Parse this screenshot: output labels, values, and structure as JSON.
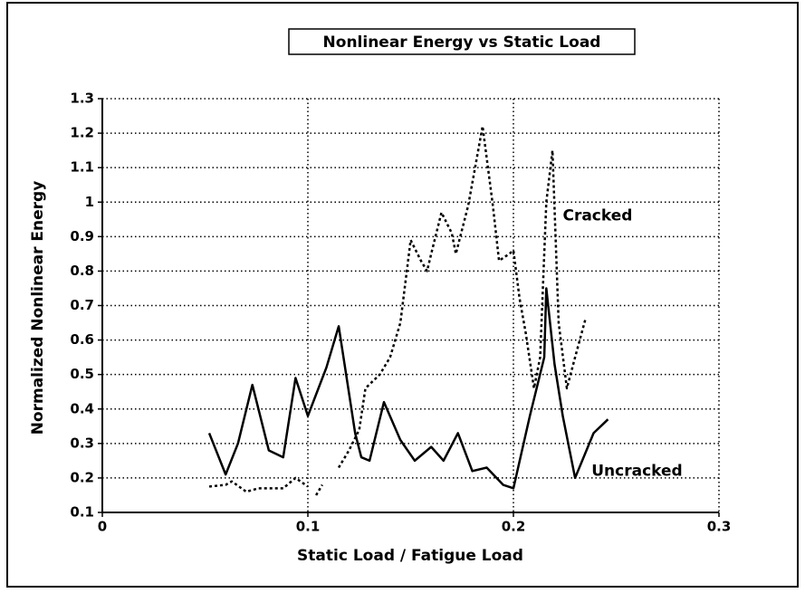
{
  "chart_data": {
    "type": "line",
    "title": "Nonlinear Energy vs Static Load",
    "x_label": "Static Load / Fatigue Load",
    "y_label": "Normalized Nonlinear Energy",
    "xlim": [
      0,
      0.3
    ],
    "ylim": [
      0.1,
      1.3
    ],
    "xticks": [
      0,
      0.1,
      0.2,
      0.3
    ],
    "yticks": [
      0.1,
      0.2,
      0.3,
      0.4,
      0.5,
      0.6,
      0.7,
      0.8,
      0.9,
      1,
      1.1,
      1.2,
      1.3
    ],
    "grid": true,
    "series": [
      {
        "name": "Uncracked",
        "color": "#000000",
        "style": "solid",
        "x": [
          0.052,
          0.06,
          0.066,
          0.073,
          0.081,
          0.088,
          0.094,
          0.1,
          0.109,
          0.115,
          0.123,
          0.126,
          0.13,
          0.137,
          0.145,
          0.152,
          0.16,
          0.166,
          0.173,
          0.18,
          0.187,
          0.195,
          0.2,
          0.208,
          0.215,
          0.216,
          0.22,
          0.224,
          0.23,
          0.239,
          0.246
        ],
        "values": [
          0.33,
          0.21,
          0.3,
          0.47,
          0.28,
          0.26,
          0.49,
          0.38,
          0.52,
          0.64,
          0.33,
          0.26,
          0.25,
          0.42,
          0.31,
          0.25,
          0.29,
          0.25,
          0.33,
          0.22,
          0.23,
          0.18,
          0.17,
          0.38,
          0.55,
          0.75,
          0.53,
          0.38,
          0.2,
          0.33,
          0.37
        ]
      },
      {
        "name": "Cracked",
        "color": "#000000",
        "style": "dotted",
        "x": [
          0.052,
          0.06,
          0.063,
          0.07,
          0.076,
          0.088,
          0.094,
          0.1,
          0.102,
          0.104,
          0.107,
          0.111,
          0.115,
          0.12,
          0.125,
          0.128,
          0.135,
          0.14,
          0.145,
          0.15,
          0.155,
          0.158,
          0.16,
          0.165,
          0.17,
          0.172,
          0.178,
          0.185,
          0.19,
          0.193,
          0.198,
          0.2,
          0.203,
          0.206,
          0.21,
          0.213,
          0.216,
          0.219,
          0.222,
          0.226,
          0.23,
          0.235
        ],
        "values": [
          0.175,
          0.18,
          0.19,
          0.16,
          0.17,
          0.17,
          0.2,
          0.175,
          null,
          0.15,
          0.18,
          null,
          0.23,
          0.28,
          0.34,
          0.46,
          0.5,
          0.55,
          0.65,
          0.89,
          0.83,
          0.8,
          0.85,
          0.97,
          0.91,
          0.85,
          0.99,
          1.22,
          0.99,
          0.83,
          0.85,
          0.86,
          0.72,
          0.62,
          0.46,
          0.55,
          1.0,
          1.15,
          0.65,
          0.46,
          0.55,
          0.66
        ]
      }
    ],
    "annotations": [
      {
        "text": "Cracked",
        "x": 0.224,
        "y": 0.96
      },
      {
        "text": "Uncracked",
        "x": 0.238,
        "y": 0.22
      }
    ]
  }
}
